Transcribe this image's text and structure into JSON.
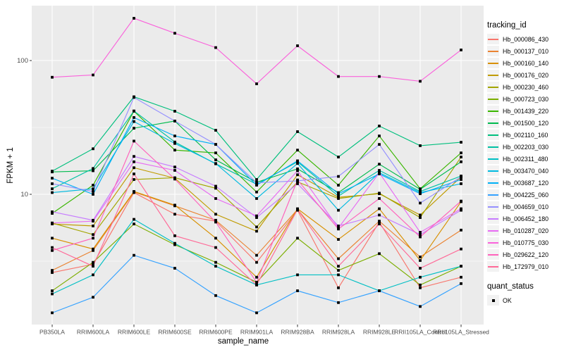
{
  "chart_data": {
    "type": "line",
    "title": "",
    "xlabel": "sample_name",
    "ylabel": "FPKM + 1",
    "y_scale": "log10",
    "y_ticks": [
      10,
      100
    ],
    "y_tick_labels": [
      "10",
      "100"
    ],
    "y_minor_breaks": [
      3.162,
      31.62
    ],
    "ylim": [
      1.05,
      260
    ],
    "grid": "on",
    "legend_position": "right",
    "panel_background": "#EBEBEB",
    "gridline_color": "#FFFFFF",
    "axis_text_color": "#4D4D4D",
    "point_marker": {
      "shape": "square",
      "color": "#000000"
    },
    "categories": [
      "PB350LA",
      "RRIM600LA",
      "RRIM600LE",
      "RRIM600SE",
      "RRIM600PE",
      "RRIM901LA",
      "RRIM928BA",
      "RRIM928LA",
      "RRIM928LE",
      "RRII105LA_Control",
      "RRII105LA_Stressed"
    ],
    "series": [
      {
        "name": "Hb_000086_430",
        "color": "#F8766D",
        "values": [
          2.6,
          3.0,
          10.3,
          7.1,
          6.3,
          3.1,
          7.6,
          2.0,
          6.2,
          2.0,
          2.4
        ]
      },
      {
        "name": "Hb_000137_010",
        "color": "#EA8331",
        "values": [
          2.7,
          3.8,
          10.4,
          8.2,
          6.4,
          3.5,
          7.7,
          3.3,
          6.3,
          3.4,
          5.4
        ]
      },
      {
        "name": "Hb_000160_140",
        "color": "#D89000",
        "values": [
          4.7,
          3.9,
          10.5,
          8.3,
          4.7,
          2.4,
          7.8,
          4.6,
          7.8,
          3.2,
          8.8
        ]
      },
      {
        "name": "Hb_000176_020",
        "color": "#C09B00",
        "values": [
          6.0,
          5.8,
          15.8,
          13.2,
          7.1,
          5.3,
          14.0,
          9.5,
          10.1,
          7.0,
          13.5
        ]
      },
      {
        "name": "Hb_000230_460",
        "color": "#A3A500",
        "values": [
          6.1,
          5.0,
          12.9,
          13.3,
          11.1,
          5.7,
          12.4,
          9.3,
          10.2,
          6.7,
          19.0
        ]
      },
      {
        "name": "Hb_000723_030",
        "color": "#7CAE00",
        "values": [
          1.9,
          3.1,
          6.0,
          4.2,
          3.1,
          2.2,
          4.7,
          2.7,
          3.6,
          2.1,
          2.9
        ]
      },
      {
        "name": "Hb_001439_220",
        "color": "#39B600",
        "values": [
          7.2,
          11.7,
          41.8,
          21.4,
          20.4,
          10.4,
          21.4,
          11.7,
          27.3,
          11.0,
          20.4
        ]
      },
      {
        "name": "Hb_001500_120",
        "color": "#00BB4E",
        "values": [
          14.7,
          15.0,
          31.2,
          35.3,
          18.1,
          12.3,
          15.5,
          10.3,
          16.8,
          10.9,
          17.5
        ]
      },
      {
        "name": "Hb_002110_160",
        "color": "#00BF7D",
        "values": [
          14.9,
          21.9,
          53.6,
          41.8,
          30.1,
          12.9,
          29.4,
          19.0,
          32.4,
          23.1,
          24.5
        ]
      },
      {
        "name": "Hb_002203_030",
        "color": "#00C1A3",
        "values": [
          11.0,
          15.6,
          42.0,
          24.6,
          16.9,
          11.9,
          17.5,
          9.7,
          15.1,
          10.5,
          13.7
        ]
      },
      {
        "name": "Hb_002311_480",
        "color": "#00BFC4",
        "values": [
          1.8,
          2.5,
          6.5,
          4.3,
          2.9,
          2.1,
          2.5,
          2.5,
          1.9,
          2.4,
          2.9
        ]
      },
      {
        "name": "Hb_003470_040",
        "color": "#00BAE0",
        "values": [
          10.3,
          11.0,
          35.0,
          24.0,
          17.0,
          9.3,
          17.0,
          7.6,
          14.5,
          10.3,
          12.0
        ]
      },
      {
        "name": "Hb_003687_120",
        "color": "#00B0F6",
        "values": [
          13.2,
          10.0,
          37.5,
          27.3,
          23.6,
          11.7,
          17.8,
          10.1,
          14.2,
          10.1,
          12.9
        ]
      },
      {
        "name": "Hb_004225_060",
        "color": "#35A2FF",
        "values": [
          1.3,
          1.7,
          3.5,
          2.8,
          1.75,
          1.3,
          1.9,
          1.55,
          1.9,
          1.45,
          2.15
        ]
      },
      {
        "name": "Hb_004659_010",
        "color": "#9590FF",
        "values": [
          12.0,
          10.5,
          53.0,
          35.3,
          23.6,
          12.2,
          12.6,
          13.6,
          23.6,
          8.6,
          13.5
        ]
      },
      {
        "name": "Hb_006452_180",
        "color": "#C77CFF",
        "values": [
          7.4,
          6.4,
          19.2,
          16.0,
          11.5,
          6.7,
          12.0,
          5.8,
          7.0,
          5.0,
          7.6
        ]
      },
      {
        "name": "Hb_010287_020",
        "color": "#E76BF3",
        "values": [
          6.1,
          6.3,
          17.5,
          15.1,
          9.3,
          6.9,
          15.0,
          5.6,
          14.5,
          5.2,
          7.8
        ]
      },
      {
        "name": "Hb_010775_030",
        "color": "#FA62DB",
        "values": [
          75,
          78,
          207,
          160,
          125,
          67,
          129,
          76,
          76,
          70,
          120
        ]
      },
      {
        "name": "Hb_029622_120",
        "color": "#FF62BC",
        "values": [
          3.8,
          4.7,
          25.0,
          13.0,
          6.2,
          2.2,
          12.8,
          5.5,
          9.3,
          4.8,
          8.9
        ]
      },
      {
        "name": "Hb_172979_010",
        "color": "#FF6A98",
        "values": [
          4.0,
          2.9,
          14.2,
          4.9,
          4.0,
          2.1,
          7.7,
          2.9,
          6.0,
          2.8,
          3.9
        ]
      }
    ],
    "legend": {
      "color_title": "tracking_id",
      "shape_title": "quant_status",
      "shape_items": [
        {
          "label": "OK",
          "marker": "black-square"
        }
      ]
    }
  }
}
